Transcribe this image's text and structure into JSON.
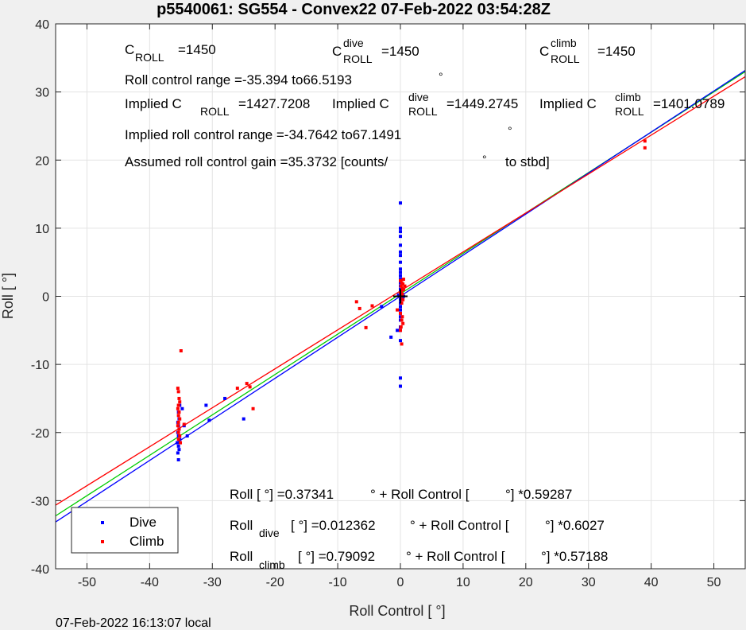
{
  "chart_data": {
    "type": "scatter",
    "title": "p5540061: SG554 - Convex22 07-Feb-2022 03:54:28Z",
    "xlabel": "Roll Control [   °]",
    "ylabel": "Roll [  °]",
    "xlim": [
      -55,
      55
    ],
    "ylim": [
      -40,
      40
    ],
    "xticks": [
      -50,
      -40,
      -30,
      -20,
      -10,
      0,
      10,
      20,
      30,
      40,
      50
    ],
    "yticks": [
      -40,
      -30,
      -20,
      -10,
      0,
      10,
      20,
      30,
      40
    ],
    "grid": true,
    "legend": {
      "position": "bottom-left",
      "entries": [
        "Dive",
        "Climb"
      ]
    },
    "colors": {
      "dive": "#0000ff",
      "climb": "#ff0000",
      "fit_all": "#00cc00",
      "fit_dive": "#0000ff",
      "fit_climb": "#ff0000",
      "origin": "#000000"
    },
    "series": [
      {
        "name": "Dive",
        "color": "#0000ff",
        "points": [
          [
            -35.4,
            -24.0
          ],
          [
            -35.5,
            -23.0
          ],
          [
            -35.3,
            -22.5
          ],
          [
            -35.4,
            -22.0
          ],
          [
            -35.6,
            -21.5
          ],
          [
            -35.2,
            -21.0
          ],
          [
            -35.4,
            -20.5
          ],
          [
            -35.5,
            -20.0
          ],
          [
            -35.3,
            -19.5
          ],
          [
            -35.4,
            -19.0
          ],
          [
            -35.5,
            -18.5
          ],
          [
            -35.3,
            -18.0
          ],
          [
            -35.4,
            -17.0
          ],
          [
            -35.2,
            -16.0
          ],
          [
            -34.8,
            -16.5
          ],
          [
            -34.5,
            -19.0
          ],
          [
            -31.0,
            -16.0
          ],
          [
            -28.0,
            -15.0
          ],
          [
            -25.0,
            -18.0
          ],
          [
            -30.5,
            -18.2
          ],
          [
            -34.0,
            -20.5
          ],
          [
            -1.5,
            -6.0
          ],
          [
            -0.5,
            -5.0
          ],
          [
            -3.0,
            -1.5
          ],
          [
            0.0,
            13.7
          ],
          [
            0.0,
            10.0
          ],
          [
            0.0,
            9.5
          ],
          [
            0.0,
            8.8
          ],
          [
            0.0,
            7.5
          ],
          [
            0.0,
            6.5
          ],
          [
            0.0,
            6.0
          ],
          [
            0.0,
            5.0
          ],
          [
            0.0,
            4.0
          ],
          [
            0.0,
            3.5
          ],
          [
            0.0,
            3.0
          ],
          [
            0.0,
            2.5
          ],
          [
            0.0,
            2.0
          ],
          [
            0.0,
            1.5
          ],
          [
            0.0,
            1.0
          ],
          [
            0.0,
            0.5
          ],
          [
            0.0,
            0.0
          ],
          [
            0.0,
            -0.5
          ],
          [
            0.0,
            -1.0
          ],
          [
            0.0,
            -1.5
          ],
          [
            0.0,
            -2.0
          ],
          [
            0.0,
            -2.5
          ],
          [
            0.0,
            -3.0
          ],
          [
            0.0,
            -3.5
          ],
          [
            0.0,
            -4.5
          ],
          [
            0.0,
            -5.0
          ],
          [
            0.0,
            -6.5
          ],
          [
            0.0,
            -12.0
          ],
          [
            0.0,
            -13.2
          ],
          [
            0.3,
            -0.3
          ],
          [
            -0.3,
            0.2
          ],
          [
            0.5,
            0.0
          ]
        ]
      },
      {
        "name": "Climb",
        "color": "#ff0000",
        "points": [
          [
            -35.0,
            -8.0
          ],
          [
            -35.5,
            -13.5
          ],
          [
            -35.4,
            -14.0
          ],
          [
            -35.3,
            -15.0
          ],
          [
            -35.2,
            -15.5
          ],
          [
            -35.4,
            -16.0
          ],
          [
            -35.5,
            -16.5
          ],
          [
            -35.3,
            -17.0
          ],
          [
            -35.4,
            -17.5
          ],
          [
            -35.2,
            -18.0
          ],
          [
            -35.4,
            -18.5
          ],
          [
            -35.5,
            -19.0
          ],
          [
            -35.3,
            -19.5
          ],
          [
            -35.4,
            -20.0
          ],
          [
            -35.2,
            -20.5
          ],
          [
            -35.4,
            -21.0
          ],
          [
            -35.1,
            -21.5
          ],
          [
            -34.5,
            -18.8
          ],
          [
            -26.0,
            -13.5
          ],
          [
            -24.5,
            -12.8
          ],
          [
            -24.0,
            -13.3
          ],
          [
            -23.5,
            -16.5
          ],
          [
            -7.0,
            -0.8
          ],
          [
            -6.5,
            -1.8
          ],
          [
            -5.5,
            -4.6
          ],
          [
            -4.5,
            -1.4
          ],
          [
            -0.5,
            -2.0
          ],
          [
            0.0,
            2.3
          ],
          [
            0.2,
            2.0
          ],
          [
            0.4,
            1.8
          ],
          [
            0.1,
            1.5
          ],
          [
            0.3,
            1.2
          ],
          [
            0.5,
            1.0
          ],
          [
            0.2,
            0.8
          ],
          [
            0.0,
            0.5
          ],
          [
            0.3,
            0.3
          ],
          [
            0.1,
            0.0
          ],
          [
            0.4,
            -0.5
          ],
          [
            0.2,
            -1.0
          ],
          [
            0.0,
            -2.5
          ],
          [
            0.3,
            -3.0
          ],
          [
            0.2,
            -3.5
          ],
          [
            0.4,
            -4.0
          ],
          [
            0.1,
            -4.5
          ],
          [
            0.0,
            -5.0
          ],
          [
            0.2,
            -7.0
          ],
          [
            0.5,
            2.5
          ],
          [
            0.7,
            1.5
          ],
          [
            39.0,
            22.8
          ],
          [
            39.0,
            21.8
          ]
        ]
      }
    ],
    "fits": [
      {
        "name": "all",
        "color": "#00cc00",
        "intercept": 0.37341,
        "slope": 0.59287
      },
      {
        "name": "dive",
        "color": "#0000ff",
        "intercept": 0.012362,
        "slope": 0.6027
      },
      {
        "name": "climb",
        "color": "#ff0000",
        "intercept": 0.79092,
        "slope": 0.57188
      }
    ],
    "annotations": {
      "c_roll": {
        "base": "C",
        "sub": "ROLL",
        "value": "=1450"
      },
      "c_roll_dive": {
        "base": "C",
        "sup": "dive",
        "sub": "ROLL",
        "value": "=1450"
      },
      "c_roll_climb": {
        "base": "C",
        "sup": "climb",
        "sub": "ROLL",
        "value": "=1450"
      },
      "range": "Roll control range =-35.394 to66.5193",
      "range_deg": "°",
      "implied_1": {
        "prefix": "Implied C",
        "sub": "ROLL",
        "value": "=1427.7208"
      },
      "implied_2": {
        "prefix": "Implied C",
        "sup": "dive",
        "sub": "ROLL",
        "value": "=1449.2745"
      },
      "implied_3": {
        "prefix": "Implied C",
        "sup": "climb",
        "sub": "ROLL",
        "value": "=1401.0789"
      },
      "implied_range": "Implied roll control range =-34.7642 to67.1491",
      "implied_range_deg": "°",
      "gain": "Assumed roll control gain =35.3732 [counts/",
      "gain_deg": "°",
      "gain_end": "to stbd]",
      "eq1_a": "Roll [  °] =0.37341",
      "eq1_b": "° + Roll Control [",
      "eq1_c": "°] *0.59287",
      "eq2_base": "Roll",
      "eq2_sub": "dive",
      "eq2_a": "[  °] =0.012362",
      "eq2_b": "° + Roll Control [",
      "eq2_c": "°] *0.6027",
      "eq3_base": "Roll",
      "eq3_sub": "climb",
      "eq3_a": "[  °] =0.79092",
      "eq3_b": "° + Roll Control [",
      "eq3_c": "°] *0.57188"
    }
  },
  "footer": "07-Feb-2022 16:13:07 local"
}
